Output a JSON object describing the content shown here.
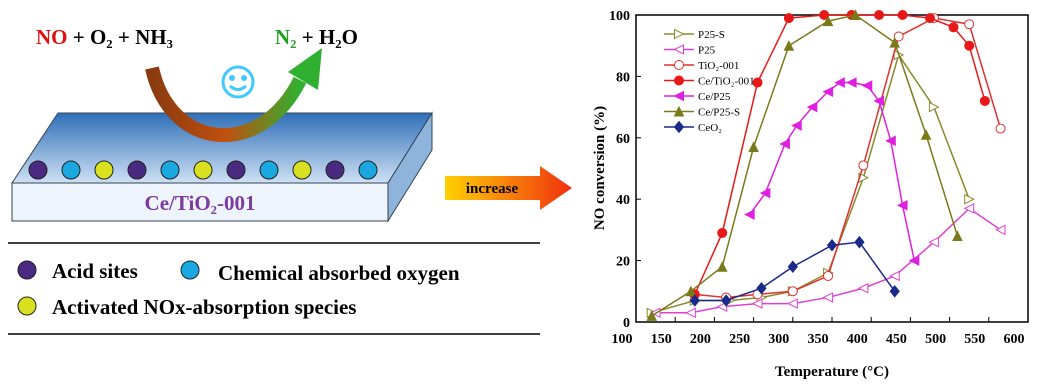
{
  "diagram": {
    "equation": {
      "reactant_no": "NO",
      "reactants_rest": "+ O₂ + NH₃",
      "product_n2": "N₂",
      "products_rest": "+ H₂O"
    },
    "catalyst_label": "Ce/TiO₂-001",
    "arrow_label": "increase",
    "legend": [
      "Acid sites",
      "Chemical absorbed oxygen",
      "Activated NOx-absorption species"
    ]
  },
  "chart_data": {
    "type": "line",
    "xlabel": "Temperature (°C)",
    "ylabel": "NO conversion (%)",
    "xlim": [
      100,
      600
    ],
    "xticks": [
      100,
      150,
      200,
      250,
      300,
      350,
      400,
      450,
      500,
      550,
      600
    ],
    "ylim": [
      0,
      100
    ],
    "yticks": [
      0,
      20,
      40,
      60,
      80,
      100
    ],
    "legend": "upper left",
    "series": [
      {
        "name": "P25-S",
        "color": "#8a8a2a",
        "marker": "triangle-right",
        "filled": false,
        "x": [
          120,
          175,
          220,
          260,
          300,
          345,
          390,
          435,
          480,
          525
        ],
        "values": [
          3,
          7,
          7,
          8,
          10,
          16,
          47,
          87,
          70,
          40
        ]
      },
      {
        "name": "P25",
        "color": "#e040d0",
        "marker": "triangle-left",
        "filled": false,
        "x": [
          125,
          170,
          210,
          255,
          300,
          345,
          390,
          430,
          480,
          525,
          565
        ],
        "values": [
          3,
          3,
          5,
          6,
          6,
          8,
          11,
          15,
          26,
          37,
          30
        ]
      },
      {
        "name": "TiO₂-001",
        "color": "#e03030",
        "marker": "circle",
        "filled": false,
        "x": [
          175,
          215,
          255,
          300,
          345,
          390,
          435,
          480,
          525,
          565
        ],
        "values": [
          9,
          8,
          9,
          10,
          15,
          51,
          93,
          99,
          97,
          63
        ]
      },
      {
        "name": "Ce/TiO₂-001",
        "color": "#e81818",
        "marker": "circle",
        "filled": true,
        "x": [
          175,
          210,
          255,
          295,
          340,
          375,
          410,
          440,
          475,
          505,
          525,
          545
        ],
        "values": [
          9,
          29,
          78,
          99,
          100,
          100,
          100,
          100,
          99,
          96,
          90,
          72
        ]
      },
      {
        "name": "Ce/P25",
        "color": "#e020e0",
        "marker": "triangle-left",
        "filled": true,
        "x": [
          245,
          265,
          290,
          305,
          325,
          345,
          360,
          375,
          395,
          410,
          425,
          440,
          455
        ],
        "values": [
          35,
          42,
          58,
          64,
          70,
          75,
          78,
          78,
          77,
          72,
          59,
          38,
          20
        ]
      },
      {
        "name": "Ce/P25-S",
        "color": "#7a7a1a",
        "marker": "triangle-up",
        "filled": true,
        "x": [
          120,
          170,
          210,
          250,
          295,
          345,
          380,
          430,
          470,
          510
        ],
        "values": [
          2,
          10,
          18,
          57,
          90,
          98,
          100,
          91,
          61,
          28
        ]
      },
      {
        "name": "CeO₂",
        "color": "#1a2a8a",
        "marker": "diamond",
        "filled": true,
        "x": [
          175,
          215,
          260,
          300,
          350,
          385,
          430
        ],
        "values": [
          7,
          7,
          11,
          18,
          25,
          26,
          10
        ]
      }
    ]
  }
}
